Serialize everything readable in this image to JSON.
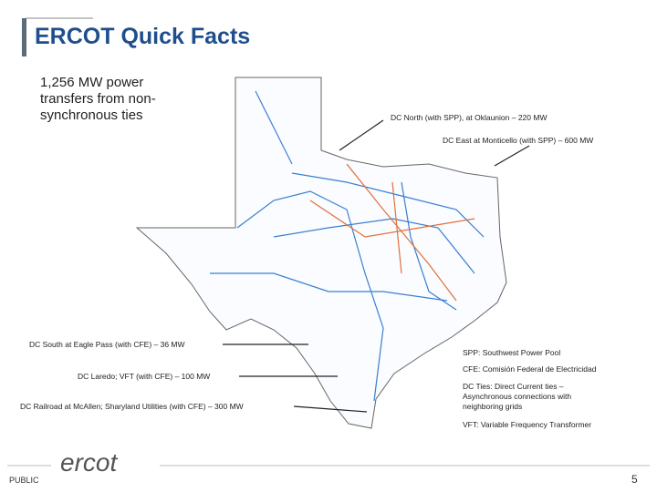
{
  "header": {
    "title": "ERCOT Quick Facts"
  },
  "summary": "1,256 MW power transfers from non-synchronous ties",
  "ties": [
    "DC North (with SPP), at Oklaunion – 220 MW",
    "DC East at Monticello (with SPP) – 600 MW",
    "DC South at Eagle Pass (with CFE) – 36 MW",
    "DC Laredo; VFT (with CFE) – 100 MW",
    "DC Railroad at McAllen; Sharyland Utilities (with CFE) – 300 MW"
  ],
  "glossary": [
    "SPP: Southwest Power Pool",
    "CFE: Comisión Federal de Electricidad",
    "DC Ties: Direct Current ties – Asynchronous connections with neighboring grids",
    "VFT: Variable Frequency Transformer"
  ],
  "footer": {
    "logo": "ercot",
    "classification": "PUBLIC",
    "page": "5"
  }
}
